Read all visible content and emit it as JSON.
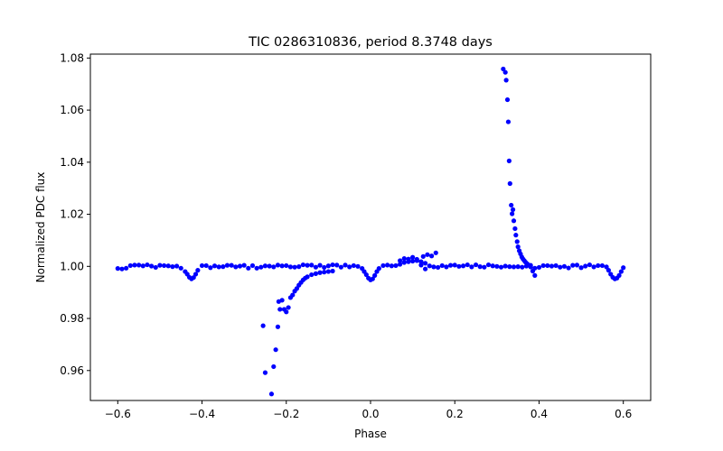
{
  "chart_data": {
    "type": "scatter",
    "title": "TIC 0286310836, period 8.3748 days",
    "xlabel": "Phase",
    "ylabel": "Normalized PDC flux",
    "xlim": [
      -0.665,
      0.665
    ],
    "ylim": [
      0.9485,
      1.0815
    ],
    "xticks": [
      -0.6,
      -0.4,
      -0.2,
      0.0,
      0.2,
      0.4,
      0.6
    ],
    "xtick_labels": [
      "−0.6",
      "−0.4",
      "−0.2",
      "0.0",
      "0.2",
      "0.4",
      "0.6"
    ],
    "yticks": [
      0.96,
      0.98,
      1.0,
      1.02,
      1.04,
      1.06,
      1.08
    ],
    "ytick_labels": [
      "0.96",
      "0.98",
      "1.00",
      "1.02",
      "1.04",
      "1.06",
      "1.08"
    ],
    "grid": false,
    "marker_color": "#0000ff",
    "series": [
      {
        "points": [
          [
            -0.6,
            0.9992
          ],
          [
            -0.59,
            0.999
          ],
          [
            -0.58,
            0.9993
          ],
          [
            -0.57,
            1.0003
          ],
          [
            -0.56,
            1.0005
          ],
          [
            -0.55,
            1.0005
          ],
          [
            -0.54,
            1.0002
          ],
          [
            -0.53,
            1.0006
          ],
          [
            -0.52,
            1.0001
          ],
          [
            -0.51,
            0.9996
          ],
          [
            -0.5,
            1.0004
          ],
          [
            -0.49,
            1.0003
          ],
          [
            -0.48,
            1.0002
          ],
          [
            -0.47,
            0.9999
          ],
          [
            -0.46,
            1.0001
          ],
          [
            -0.45,
            0.9993
          ],
          [
            -0.44,
            0.998
          ],
          [
            -0.435,
            0.997
          ],
          [
            -0.43,
            0.9958
          ],
          [
            -0.425,
            0.9952
          ],
          [
            -0.42,
            0.9957
          ],
          [
            -0.415,
            0.997
          ],
          [
            -0.41,
            0.9985
          ],
          [
            -0.4,
            1.0003
          ],
          [
            -0.39,
            1.0003
          ],
          [
            -0.38,
            0.9995
          ],
          [
            -0.37,
            1.0002
          ],
          [
            -0.36,
            0.9998
          ],
          [
            -0.35,
            0.9999
          ],
          [
            -0.34,
            1.0004
          ],
          [
            -0.33,
            1.0004
          ],
          [
            -0.32,
            0.9998
          ],
          [
            -0.31,
            1.0001
          ],
          [
            -0.3,
            1.0004
          ],
          [
            -0.29,
            0.9993
          ],
          [
            -0.28,
            1.0003
          ],
          [
            -0.27,
            0.9993
          ],
          [
            -0.26,
            0.9997
          ],
          [
            -0.25,
            1.0002
          ],
          [
            -0.24,
            1.0001
          ],
          [
            -0.23,
            0.9998
          ],
          [
            -0.22,
            1.0005
          ],
          [
            -0.21,
            1.0002
          ],
          [
            -0.2,
            1.0003
          ],
          [
            -0.19,
            0.9998
          ],
          [
            -0.18,
            0.9997
          ],
          [
            -0.17,
            0.9999
          ],
          [
            -0.16,
            1.0006
          ],
          [
            -0.15,
            1.0004
          ],
          [
            -0.14,
            1.0005
          ],
          [
            -0.13,
            0.9997
          ],
          [
            -0.12,
            1.0004
          ],
          [
            -0.11,
            0.9996
          ],
          [
            -0.1,
            1.0002
          ],
          [
            -0.09,
            1.0006
          ],
          [
            -0.08,
            1.0005
          ],
          [
            -0.07,
            0.9997
          ],
          [
            -0.06,
            1.0005
          ],
          [
            -0.05,
            0.9998
          ],
          [
            -0.04,
            1.0003
          ],
          [
            -0.03,
            1.0
          ],
          [
            -0.02,
            0.9992
          ],
          [
            -0.015,
            0.998
          ],
          [
            -0.01,
            0.9968
          ],
          [
            -0.005,
            0.9955
          ],
          [
            0.0,
            0.9948
          ],
          [
            0.005,
            0.9952
          ],
          [
            0.01,
            0.9965
          ],
          [
            0.015,
            0.998
          ],
          [
            0.02,
            0.9992
          ],
          [
            0.03,
            1.0003
          ],
          [
            0.04,
            1.0005
          ],
          [
            0.05,
            1.0002
          ],
          [
            0.06,
            1.0003
          ],
          [
            0.07,
            1.0008
          ],
          [
            0.08,
            1.0015
          ],
          [
            0.09,
            1.0018
          ],
          [
            0.1,
            1.002
          ],
          [
            0.11,
            1.0022
          ],
          [
            0.12,
            1.0018
          ],
          [
            0.13,
            1.0012
          ],
          [
            0.14,
            1.0002
          ],
          [
            0.15,
            0.9998
          ],
          [
            0.16,
            0.9996
          ],
          [
            0.17,
            1.0003
          ],
          [
            0.18,
            0.9998
          ],
          [
            0.19,
            1.0004
          ],
          [
            0.2,
            1.0005
          ],
          [
            0.21,
            1.0
          ],
          [
            0.22,
            1.0002
          ],
          [
            0.23,
            1.0006
          ],
          [
            0.24,
            0.9998
          ],
          [
            0.25,
            1.0006
          ],
          [
            0.26,
            0.9999
          ],
          [
            0.27,
            0.9997
          ],
          [
            0.28,
            1.0006
          ],
          [
            0.29,
            1.0002
          ],
          [
            0.3,
            1.0
          ],
          [
            0.31,
            0.9997
          ],
          [
            0.32,
            1.0001
          ],
          [
            0.33,
            0.9999
          ],
          [
            0.34,
            0.9998
          ],
          [
            0.35,
            0.9999
          ],
          [
            0.36,
            0.9997
          ],
          [
            0.37,
            1.0001
          ],
          [
            0.38,
            0.9998
          ],
          [
            0.39,
            0.9993
          ],
          [
            0.4,
            0.9996
          ],
          [
            0.41,
            1.0003
          ],
          [
            0.42,
            1.0003
          ],
          [
            0.43,
            1.0001
          ],
          [
            0.44,
            1.0003
          ],
          [
            0.45,
            0.9997
          ],
          [
            0.46,
            1.0
          ],
          [
            0.47,
            0.9994
          ],
          [
            0.48,
            1.0004
          ],
          [
            0.49,
            1.0005
          ],
          [
            0.5,
            0.9995
          ],
          [
            0.51,
            1.0001
          ],
          [
            0.52,
            1.0006
          ],
          [
            0.53,
            0.9998
          ],
          [
            0.54,
            1.0003
          ],
          [
            0.55,
            1.0003
          ],
          [
            0.56,
            0.9998
          ],
          [
            0.565,
            0.9985
          ],
          [
            0.57,
            0.997
          ],
          [
            0.575,
            0.9958
          ],
          [
            0.58,
            0.9952
          ],
          [
            0.585,
            0.9955
          ],
          [
            0.59,
            0.9965
          ],
          [
            0.595,
            0.998
          ],
          [
            0.6,
            0.9995
          ],
          [
            0.07,
            1.0022
          ],
          [
            0.08,
            1.003
          ],
          [
            0.09,
            1.0028
          ],
          [
            0.1,
            1.0035
          ],
          [
            0.11,
            1.0027
          ],
          [
            0.125,
            1.0038
          ],
          [
            0.135,
            1.0045
          ],
          [
            0.145,
            1.004
          ],
          [
            0.155,
            1.0052
          ],
          [
            0.12,
            1.0005
          ],
          [
            0.13,
            0.999
          ],
          [
            -0.255,
            0.9772
          ],
          [
            -0.25,
            0.9592
          ],
          [
            -0.235,
            0.951
          ],
          [
            -0.23,
            0.9615
          ],
          [
            -0.225,
            0.968
          ],
          [
            -0.22,
            0.9768
          ],
          [
            -0.218,
            0.9865
          ],
          [
            -0.215,
            0.9835
          ],
          [
            -0.21,
            0.987
          ],
          [
            -0.205,
            0.9835
          ],
          [
            -0.2,
            0.9825
          ],
          [
            -0.195,
            0.9842
          ],
          [
            -0.19,
            0.988
          ],
          [
            -0.185,
            0.989
          ],
          [
            -0.18,
            0.9905
          ],
          [
            -0.175,
            0.9915
          ],
          [
            -0.17,
            0.9928
          ],
          [
            -0.165,
            0.9938
          ],
          [
            -0.16,
            0.9948
          ],
          [
            -0.155,
            0.9955
          ],
          [
            -0.15,
            0.996
          ],
          [
            -0.14,
            0.9968
          ],
          [
            -0.13,
            0.9972
          ],
          [
            -0.12,
            0.9976
          ],
          [
            -0.11,
            0.9978
          ],
          [
            -0.1,
            0.998
          ],
          [
            -0.09,
            0.9982
          ],
          [
            0.315,
            1.0758
          ],
          [
            0.32,
            1.0745
          ],
          [
            0.322,
            1.0715
          ],
          [
            0.325,
            1.064
          ],
          [
            0.327,
            1.0555
          ],
          [
            0.329,
            1.0405
          ],
          [
            0.331,
            1.0318
          ],
          [
            0.334,
            1.0235
          ],
          [
            0.336,
            1.0202
          ],
          [
            0.338,
            1.0218
          ],
          [
            0.34,
            1.0175
          ],
          [
            0.343,
            1.0145
          ],
          [
            0.345,
            1.012
          ],
          [
            0.348,
            1.0095
          ],
          [
            0.35,
            1.0075
          ],
          [
            0.353,
            1.006
          ],
          [
            0.356,
            1.0048
          ],
          [
            0.359,
            1.0036
          ],
          [
            0.362,
            1.0028
          ],
          [
            0.365,
            1.0022
          ],
          [
            0.368,
            1.0016
          ],
          [
            0.372,
            1.001
          ],
          [
            0.38,
            1.0004
          ],
          [
            0.385,
            0.9982
          ],
          [
            0.39,
            0.9965
          ]
        ]
      }
    ]
  }
}
